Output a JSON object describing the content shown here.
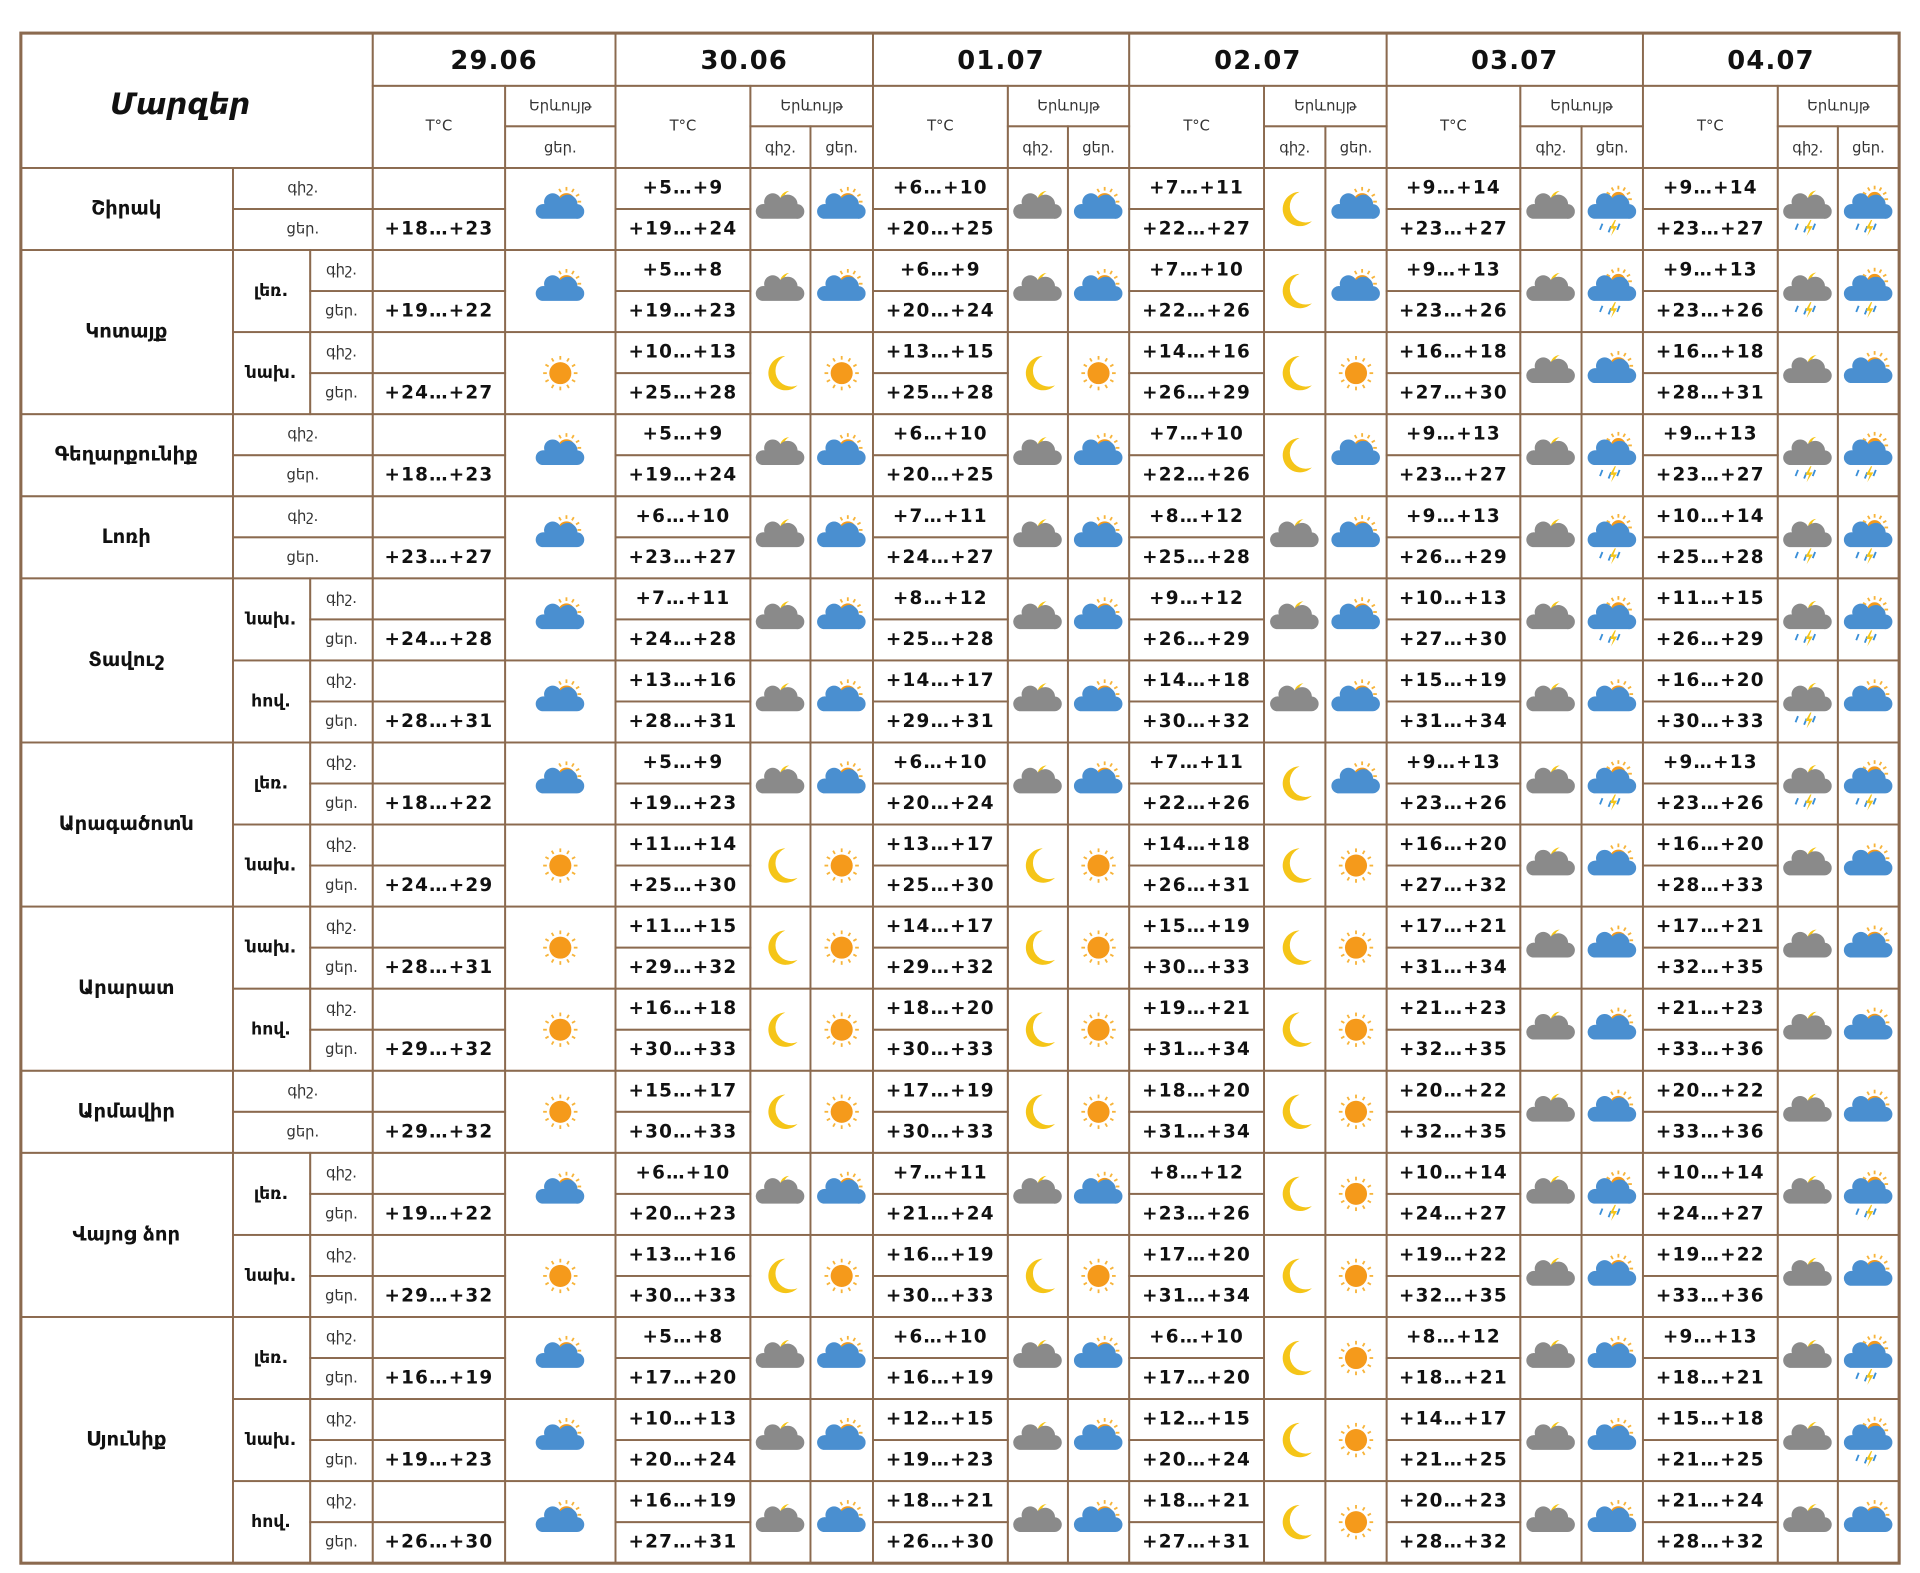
{
  "header": {
    "title": "Մարզեր",
    "dates": [
      "29.06",
      "30.06",
      "01.07",
      "02.07",
      "03.07",
      "04.07"
    ],
    "temp_label": "T°C",
    "phenomenon_label": "Երևույթ",
    "night_label": "գիշ.",
    "day_label": "ցեր."
  },
  "regions": [
    {
      "name": "Շիրակ",
      "zones": [
        {
          "first_day": "+18…+23",
          "days": [
            [
              "+5…+9",
              "+19…+24"
            ],
            [
              "+6…+10",
              "+20…+25"
            ],
            [
              "+7…+11",
              "+22…+27"
            ],
            [
              "+9…+14",
              "+23…+27"
            ],
            [
              "+9…+14",
              "+23…+27"
            ]
          ]
        }
      ]
    },
    {
      "name": "Կոտայք",
      "zones": [
        {
          "zone": "լեռ.",
          "first_day": "+19…+22",
          "days": [
            [
              "+5…+8",
              "+19…+23"
            ],
            [
              "+6…+9",
              "+20…+24"
            ],
            [
              "+7…+10",
              "+22…+26"
            ],
            [
              "+9…+13",
              "+23…+26"
            ],
            [
              "+9…+13",
              "+23…+26"
            ]
          ]
        },
        {
          "zone": "նախ.",
          "first_day": "+24…+27",
          "days": [
            [
              "+10…+13",
              "+25…+28"
            ],
            [
              "+13…+15",
              "+25…+28"
            ],
            [
              "+14…+16",
              "+26…+29"
            ],
            [
              "+16…+18",
              "+27…+30"
            ],
            [
              "+16…+18",
              "+28…+31"
            ]
          ]
        }
      ]
    },
    {
      "name": "Գեղարքունիք",
      "zones": [
        {
          "first_day": "+18…+23",
          "days": [
            [
              "+5…+9",
              "+19…+24"
            ],
            [
              "+6…+10",
              "+20…+25"
            ],
            [
              "+7…+10",
              "+22…+26"
            ],
            [
              "+9…+13",
              "+23…+27"
            ],
            [
              "+9…+13",
              "+23…+27"
            ]
          ]
        }
      ]
    },
    {
      "name": "Լոռի",
      "zones": [
        {
          "first_day": "+23…+27",
          "days": [
            [
              "+6…+10",
              "+23…+27"
            ],
            [
              "+7…+11",
              "+24…+27"
            ],
            [
              "+8…+12",
              "+25…+28"
            ],
            [
              "+9…+13",
              "+26…+29"
            ],
            [
              "+10…+14",
              "+25…+28"
            ]
          ]
        }
      ]
    },
    {
      "name": "Տավուշ",
      "zones": [
        {
          "zone": "նախ.",
          "first_day": "+24…+28",
          "days": [
            [
              "+7…+11",
              "+24…+28"
            ],
            [
              "+8…+12",
              "+25…+28"
            ],
            [
              "+9…+12",
              "+26…+29"
            ],
            [
              "+10…+13",
              "+27…+30"
            ],
            [
              "+11…+15",
              "+26…+29"
            ]
          ]
        },
        {
          "zone": "հով.",
          "first_day": "+28…+31",
          "days": [
            [
              "+13…+16",
              "+28…+31"
            ],
            [
              "+14…+17",
              "+29…+31"
            ],
            [
              "+14…+18",
              "+30…+32"
            ],
            [
              "+15…+19",
              "+31…+34"
            ],
            [
              "+16…+20",
              "+30…+33"
            ]
          ]
        }
      ]
    },
    {
      "name": "Արագածոտն",
      "zones": [
        {
          "zone": "լեռ.",
          "first_day": "+18…+22",
          "days": [
            [
              "+5…+9",
              "+19…+23"
            ],
            [
              "+6…+10",
              "+20…+24"
            ],
            [
              "+7…+11",
              "+22…+26"
            ],
            [
              "+9…+13",
              "+23…+26"
            ],
            [
              "+9…+13",
              "+23…+26"
            ]
          ]
        },
        {
          "zone": "նախ.",
          "first_day": "+24…+29",
          "days": [
            [
              "+11…+14",
              "+25…+30"
            ],
            [
              "+13…+17",
              "+25…+30"
            ],
            [
              "+14…+18",
              "+26…+31"
            ],
            [
              "+16…+20",
              "+27…+32"
            ],
            [
              "+16…+20",
              "+28…+33"
            ]
          ]
        }
      ]
    },
    {
      "name": "Արարատ",
      "zones": [
        {
          "zone": "նախ.",
          "first_day": "+28…+31",
          "days": [
            [
              "+11…+15",
              "+29…+32"
            ],
            [
              "+14…+17",
              "+29…+32"
            ],
            [
              "+15…+19",
              "+30…+33"
            ],
            [
              "+17…+21",
              "+31…+34"
            ],
            [
              "+17…+21",
              "+32…+35"
            ]
          ]
        },
        {
          "zone": "հով.",
          "first_day": "+29…+32",
          "days": [
            [
              "+16…+18",
              "+30…+33"
            ],
            [
              "+18…+20",
              "+30…+33"
            ],
            [
              "+19…+21",
              "+31…+34"
            ],
            [
              "+21…+23",
              "+32…+35"
            ],
            [
              "+21…+23",
              "+33…+36"
            ]
          ]
        }
      ]
    },
    {
      "name": "Արմավիր",
      "zones": [
        {
          "first_day": "+29…+32",
          "days": [
            [
              "+15…+17",
              "+30…+33"
            ],
            [
              "+17…+19",
              "+30…+33"
            ],
            [
              "+18…+20",
              "+31…+34"
            ],
            [
              "+20…+22",
              "+32…+35"
            ],
            [
              "+20…+22",
              "+33…+36"
            ]
          ]
        }
      ]
    },
    {
      "name": "Վայոց ձոր",
      "zones": [
        {
          "zone": "լեռ.",
          "first_day": "+19…+22",
          "days": [
            [
              "+6…+10",
              "+20…+23"
            ],
            [
              "+7…+11",
              "+21…+24"
            ],
            [
              "+8…+12",
              "+23…+26"
            ],
            [
              "+10…+14",
              "+24…+27"
            ],
            [
              "+10…+14",
              "+24…+27"
            ]
          ]
        },
        {
          "zone": "նախ.",
          "first_day": "+29…+32",
          "days": [
            [
              "+13…+16",
              "+30…+33"
            ],
            [
              "+16…+19",
              "+30…+33"
            ],
            [
              "+17…+20",
              "+31…+34"
            ],
            [
              "+19…+22",
              "+32…+35"
            ],
            [
              "+19…+22",
              "+33…+36"
            ]
          ]
        }
      ]
    },
    {
      "name": "Սյունիք",
      "zones": [
        {
          "zone": "լեռ.",
          "first_day": "+16…+19",
          "days": [
            [
              "+5…+8",
              "+17…+20"
            ],
            [
              "+6…+10",
              "+16…+19"
            ],
            [
              "+6…+10",
              "+17…+20"
            ],
            [
              "+8…+12",
              "+18…+21"
            ],
            [
              "+9…+13",
              "+18…+21"
            ]
          ]
        },
        {
          "zone": "նախ.",
          "first_day": "+19…+23",
          "days": [
            [
              "+10…+13",
              "+20…+24"
            ],
            [
              "+12…+15",
              "+19…+23"
            ],
            [
              "+12…+15",
              "+20…+24"
            ],
            [
              "+14…+17",
              "+21…+25"
            ],
            [
              "+15…+18",
              "+21…+25"
            ]
          ]
        },
        {
          "zone": "հով.",
          "first_day": "+26…+30",
          "days": [
            [
              "+16…+19",
              "+27…+31"
            ],
            [
              "+18…+21",
              "+26…+30"
            ],
            [
              "+18…+21",
              "+27…+31"
            ],
            [
              "+20…+23",
              "+28…+32"
            ],
            [
              "+21…+24",
              "+28…+32"
            ]
          ]
        }
      ]
    }
  ]
}
